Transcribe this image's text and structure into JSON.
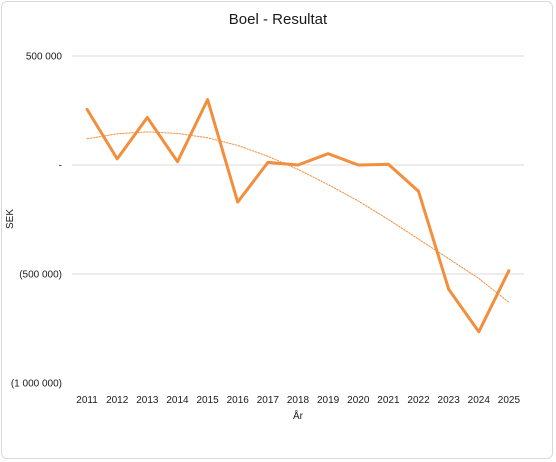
{
  "chart_data": {
    "type": "line",
    "title": "Boel - Resultat",
    "xlabel": "År",
    "ylabel": "SEK",
    "categories": [
      "2011",
      "2012",
      "2013",
      "2014",
      "2015",
      "2016",
      "2017",
      "2018",
      "2019",
      "2020",
      "2021",
      "2022",
      "2023",
      "2024",
      "2025"
    ],
    "ylim": [
      -1000000,
      500000
    ],
    "yticks": [
      500000,
      0,
      -500000,
      -1000000
    ],
    "ytick_labels": [
      "500 000",
      "-",
      "(500 000)",
      "(1 000 000)"
    ],
    "grid": true,
    "legend": "none",
    "series": [
      {
        "values": [
          255000,
          28000,
          218000,
          15000,
          300000,
          -170000,
          12000,
          0,
          52000,
          0,
          3000,
          -120000,
          -570000,
          -765000,
          -485000
        ],
        "color": "#F28E3C",
        "style": "solid"
      },
      {
        "trendline": "polynomial",
        "values": [
          120000,
          143000,
          152000,
          145000,
          125000,
          90000,
          40000,
          -20000,
          -90000,
          -165000,
          -250000,
          -340000,
          -430000,
          -520000,
          -630000
        ],
        "color": "#F28E3C",
        "style": "dotted"
      }
    ]
  }
}
